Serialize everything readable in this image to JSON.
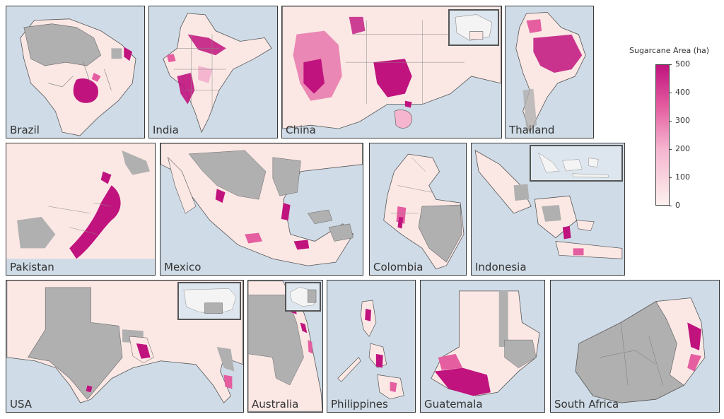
{
  "legend": {
    "title": "Sugarcane Area (ha)",
    "ticks": [
      "500",
      "400",
      "300",
      "200",
      "100",
      "0"
    ],
    "color_low": "#fdf0ee",
    "color_mid": "#f48fb6",
    "color_high": "#c0137e"
  },
  "colors": {
    "ocean": "#cfdbe6",
    "land_data": "#fbe8e5",
    "no_data": "#b0b0b0",
    "high": "#c0137e",
    "mid": "#e45ea0",
    "border": "#3a3a3a"
  },
  "panels": [
    {
      "id": "brazil",
      "label": "Brazil"
    },
    {
      "id": "india",
      "label": "India"
    },
    {
      "id": "china",
      "label": "China"
    },
    {
      "id": "thailand",
      "label": "Thailand"
    },
    {
      "id": "pakistan",
      "label": "Pakistan"
    },
    {
      "id": "mexico",
      "label": "Mexico"
    },
    {
      "id": "colombia",
      "label": "Colombia"
    },
    {
      "id": "indonesia",
      "label": "Indonesia"
    },
    {
      "id": "usa",
      "label": "USA"
    },
    {
      "id": "australia",
      "label": "Australia"
    },
    {
      "id": "philippines",
      "label": "Philippines"
    },
    {
      "id": "guatemala",
      "label": "Guatemala"
    },
    {
      "id": "south_africa",
      "label": "South Africa"
    }
  ]
}
